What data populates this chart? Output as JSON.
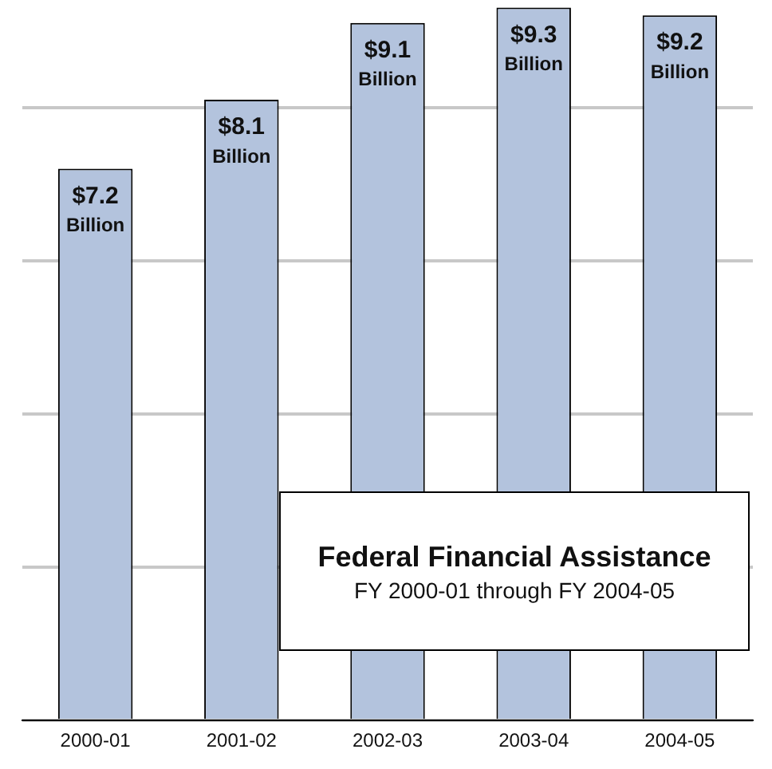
{
  "chart_data": {
    "type": "bar",
    "title": "Federal Financial Assistance",
    "subtitle": "FY 2000-01 through FY 2004-05",
    "categories": [
      "2000-01",
      "2001-02",
      "2002-03",
      "2003-04",
      "2004-05"
    ],
    "values": [
      7.2,
      8.1,
      9.1,
      9.3,
      9.2
    ],
    "color": "#b3c3dd",
    "value_labels": [
      "$7.2 Billion",
      "$8.1 Billion",
      "$9.1 Billion",
      "$9.3 Billion",
      "$9.2 Billion"
    ],
    "ylim": [
      0,
      9.4
    ],
    "yticks": [
      {
        "value": 0,
        "label": null
      },
      {
        "value": 2,
        "label": null
      },
      {
        "value": 4,
        "label": null
      },
      {
        "value": 6,
        "label": null
      },
      {
        "value": 8,
        "label": null
      }
    ],
    "grid": "y",
    "tick_labels": "x",
    "legend": false
  }
}
